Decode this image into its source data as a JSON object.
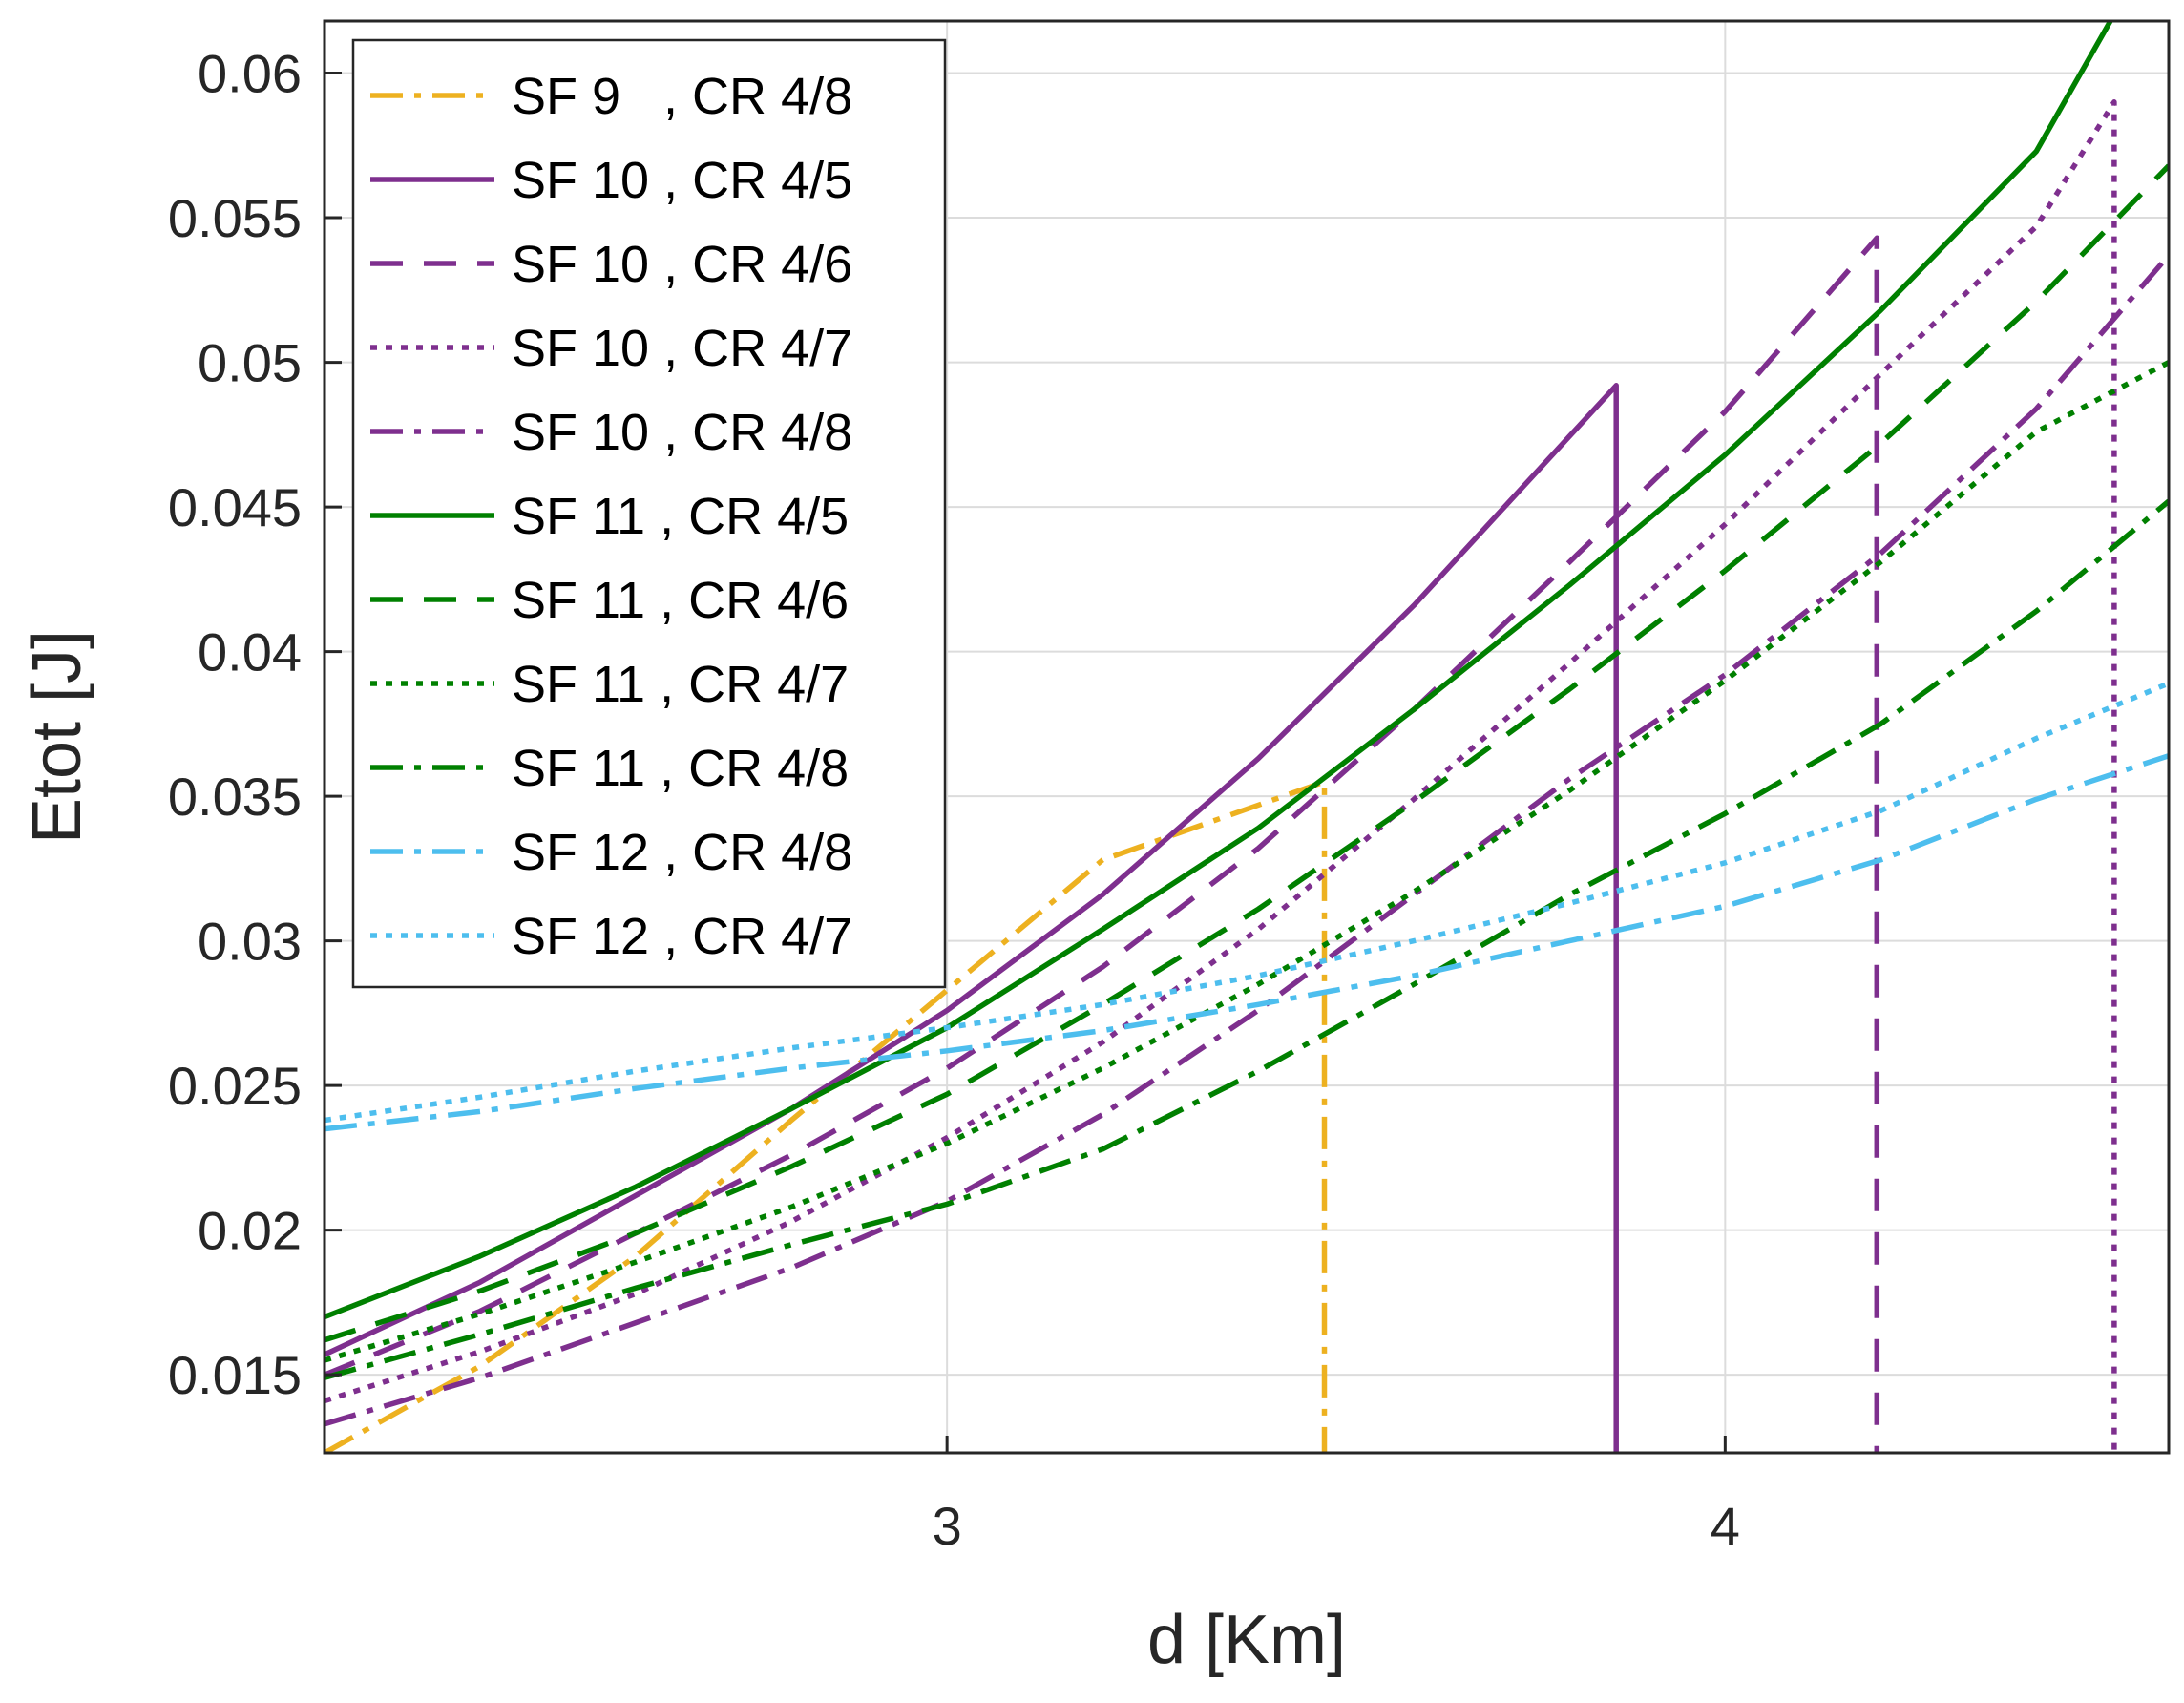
{
  "chart_data": {
    "type": "line",
    "title": "",
    "xlabel": "d [Km]",
    "ylabel": "Etot [J]",
    "xlim": [
      2.2,
      4.57
    ],
    "ylim": [
      0.0123,
      0.0618
    ],
    "grid": true,
    "legend_position": "top-left",
    "xticks": [
      3,
      4
    ],
    "xtick_labels": [
      "3",
      "4"
    ],
    "yticks": [
      0.015,
      0.02,
      0.025,
      0.03,
      0.035,
      0.04,
      0.045,
      0.05,
      0.055,
      0.06
    ],
    "ytick_labels": [
      "0.015",
      "0.02",
      "0.025",
      "0.03",
      "0.035",
      "0.04",
      "0.045",
      "0.05",
      "0.055",
      "0.06"
    ],
    "series": [
      {
        "name": "SF 9   , CR 4/8",
        "color": "#EDB120",
        "dash": "dashdot",
        "points": [
          [
            2.2,
            0.0123
          ],
          [
            2.4,
            0.0153
          ],
          [
            2.6,
            0.0191
          ],
          [
            2.8,
            0.0238
          ],
          [
            3.0,
            0.0283
          ],
          [
            3.2,
            0.0328
          ],
          [
            3.485,
            0.0355
          ]
        ],
        "drop_to": 0.0123
      },
      {
        "name": "SF 10 , CR 4/5",
        "color": "#7E2F8E",
        "dash": "solid",
        "points": [
          [
            2.2,
            0.0157
          ],
          [
            2.4,
            0.0182
          ],
          [
            2.6,
            0.0212
          ],
          [
            2.8,
            0.0242
          ],
          [
            3.0,
            0.0276
          ],
          [
            3.2,
            0.0316
          ],
          [
            3.4,
            0.0363
          ],
          [
            3.6,
            0.0416
          ],
          [
            3.86,
            0.0492
          ]
        ],
        "drop_to": 0.0123
      },
      {
        "name": "SF 10 , CR 4/6",
        "color": "#7E2F8E",
        "dash": "dashed",
        "points": [
          [
            2.2,
            0.015
          ],
          [
            2.4,
            0.0172
          ],
          [
            2.6,
            0.0199
          ],
          [
            2.8,
            0.0226
          ],
          [
            3.0,
            0.0256
          ],
          [
            3.2,
            0.0291
          ],
          [
            3.4,
            0.0332
          ],
          [
            3.6,
            0.038
          ],
          [
            3.8,
            0.0431
          ],
          [
            4.0,
            0.0483
          ],
          [
            4.195,
            0.0543
          ]
        ],
        "drop_to": 0.0123
      },
      {
        "name": "SF 10 , CR 4/7",
        "color": "#7E2F8E",
        "dash": "dotted",
        "points": [
          [
            2.2,
            0.0141
          ],
          [
            2.4,
            0.0158
          ],
          [
            2.6,
            0.0178
          ],
          [
            2.8,
            0.0203
          ],
          [
            3.0,
            0.0232
          ],
          [
            3.2,
            0.0265
          ],
          [
            3.4,
            0.0304
          ],
          [
            3.6,
            0.0349
          ],
          [
            3.8,
            0.0396
          ],
          [
            4.0,
            0.0444
          ],
          [
            4.2,
            0.0496
          ],
          [
            4.4,
            0.0547
          ],
          [
            4.5,
            0.059
          ]
        ],
        "drop_to": 0.0123
      },
      {
        "name": "SF 10 , CR 4/8",
        "color": "#7E2F8E",
        "dash": "dashdot",
        "points": [
          [
            2.2,
            0.0133
          ],
          [
            2.4,
            0.0149
          ],
          [
            2.6,
            0.0168
          ],
          [
            2.8,
            0.0187
          ],
          [
            3.0,
            0.021
          ],
          [
            3.2,
            0.024
          ],
          [
            3.4,
            0.0276
          ],
          [
            3.6,
            0.0316
          ],
          [
            3.8,
            0.0356
          ],
          [
            4.0,
            0.0392
          ],
          [
            4.2,
            0.0434
          ],
          [
            4.4,
            0.0484
          ],
          [
            4.57,
            0.0537
          ]
        ],
        "drop_to": null
      },
      {
        "name": "SF 11 , CR 4/5",
        "color": "#008000",
        "dash": "solid",
        "points": [
          [
            2.2,
            0.017
          ],
          [
            2.4,
            0.0191
          ],
          [
            2.6,
            0.0215
          ],
          [
            2.8,
            0.0242
          ],
          [
            3.0,
            0.027
          ],
          [
            3.2,
            0.0304
          ],
          [
            3.4,
            0.0339
          ],
          [
            3.6,
            0.038
          ],
          [
            3.8,
            0.0423
          ],
          [
            4.0,
            0.0468
          ],
          [
            4.2,
            0.0518
          ],
          [
            4.4,
            0.0573
          ],
          [
            4.495,
            0.0618
          ]
        ],
        "drop_to": null
      },
      {
        "name": "SF 11 , CR 4/6",
        "color": "#008000",
        "dash": "dashed",
        "points": [
          [
            2.2,
            0.0162
          ],
          [
            2.4,
            0.0179
          ],
          [
            2.6,
            0.0199
          ],
          [
            2.8,
            0.0222
          ],
          [
            3.0,
            0.0247
          ],
          [
            3.2,
            0.0278
          ],
          [
            3.4,
            0.0311
          ],
          [
            3.6,
            0.0348
          ],
          [
            3.8,
            0.0387
          ],
          [
            4.0,
            0.0428
          ],
          [
            4.2,
            0.0472
          ],
          [
            4.4,
            0.0521
          ],
          [
            4.57,
            0.0568
          ]
        ],
        "drop_to": null
      },
      {
        "name": "SF 11 , CR 4/7",
        "color": "#008000",
        "dash": "dotted",
        "points": [
          [
            2.2,
            0.0155
          ],
          [
            2.4,
            0.0171
          ],
          [
            2.6,
            0.0189
          ],
          [
            2.8,
            0.0208
          ],
          [
            3.0,
            0.023
          ],
          [
            3.2,
            0.0256
          ],
          [
            3.4,
            0.0285
          ],
          [
            3.6,
            0.0317
          ],
          [
            3.8,
            0.0352
          ],
          [
            4.0,
            0.039
          ],
          [
            4.2,
            0.0431
          ],
          [
            4.4,
            0.0476
          ],
          [
            4.57,
            0.05
          ]
        ],
        "drop_to": null
      },
      {
        "name": "SF 11 , CR 4/8",
        "color": "#008000",
        "dash": "dashdot",
        "points": [
          [
            2.2,
            0.0149
          ],
          [
            2.4,
            0.0164
          ],
          [
            2.6,
            0.018
          ],
          [
            2.8,
            0.0195
          ],
          [
            3.0,
            0.0209
          ],
          [
            3.2,
            0.0228
          ],
          [
            3.4,
            0.0255
          ],
          [
            3.6,
            0.0285
          ],
          [
            3.8,
            0.0316
          ],
          [
            4.0,
            0.0344
          ],
          [
            4.2,
            0.0375
          ],
          [
            4.4,
            0.0414
          ],
          [
            4.57,
            0.0452
          ]
        ],
        "drop_to": null
      },
      {
        "name": "SF 12 , CR 4/8",
        "color": "#4DBEEE",
        "dash": "dashdot",
        "points": [
          [
            2.2,
            0.0235
          ],
          [
            2.4,
            0.0241
          ],
          [
            2.6,
            0.0249
          ],
          [
            2.8,
            0.0256
          ],
          [
            3.0,
            0.0262
          ],
          [
            3.2,
            0.0269
          ],
          [
            3.4,
            0.0278
          ],
          [
            3.6,
            0.0288
          ],
          [
            3.8,
            0.03
          ],
          [
            4.0,
            0.0312
          ],
          [
            4.2,
            0.0328
          ],
          [
            4.4,
            0.0349
          ],
          [
            4.57,
            0.0364
          ]
        ],
        "drop_to": null
      },
      {
        "name": "SF 12 , CR 4/7",
        "color": "#4DBEEE",
        "dash": "dotted",
        "points": [
          [
            2.2,
            0.0238
          ],
          [
            2.4,
            0.0246
          ],
          [
            2.6,
            0.0255
          ],
          [
            2.8,
            0.0263
          ],
          [
            3.0,
            0.027
          ],
          [
            3.2,
            0.0278
          ],
          [
            3.4,
            0.0288
          ],
          [
            3.6,
            0.03
          ],
          [
            3.8,
            0.0313
          ],
          [
            4.0,
            0.0327
          ],
          [
            4.2,
            0.0345
          ],
          [
            4.4,
            0.037
          ],
          [
            4.57,
            0.0389
          ]
        ],
        "drop_to": null
      }
    ]
  }
}
